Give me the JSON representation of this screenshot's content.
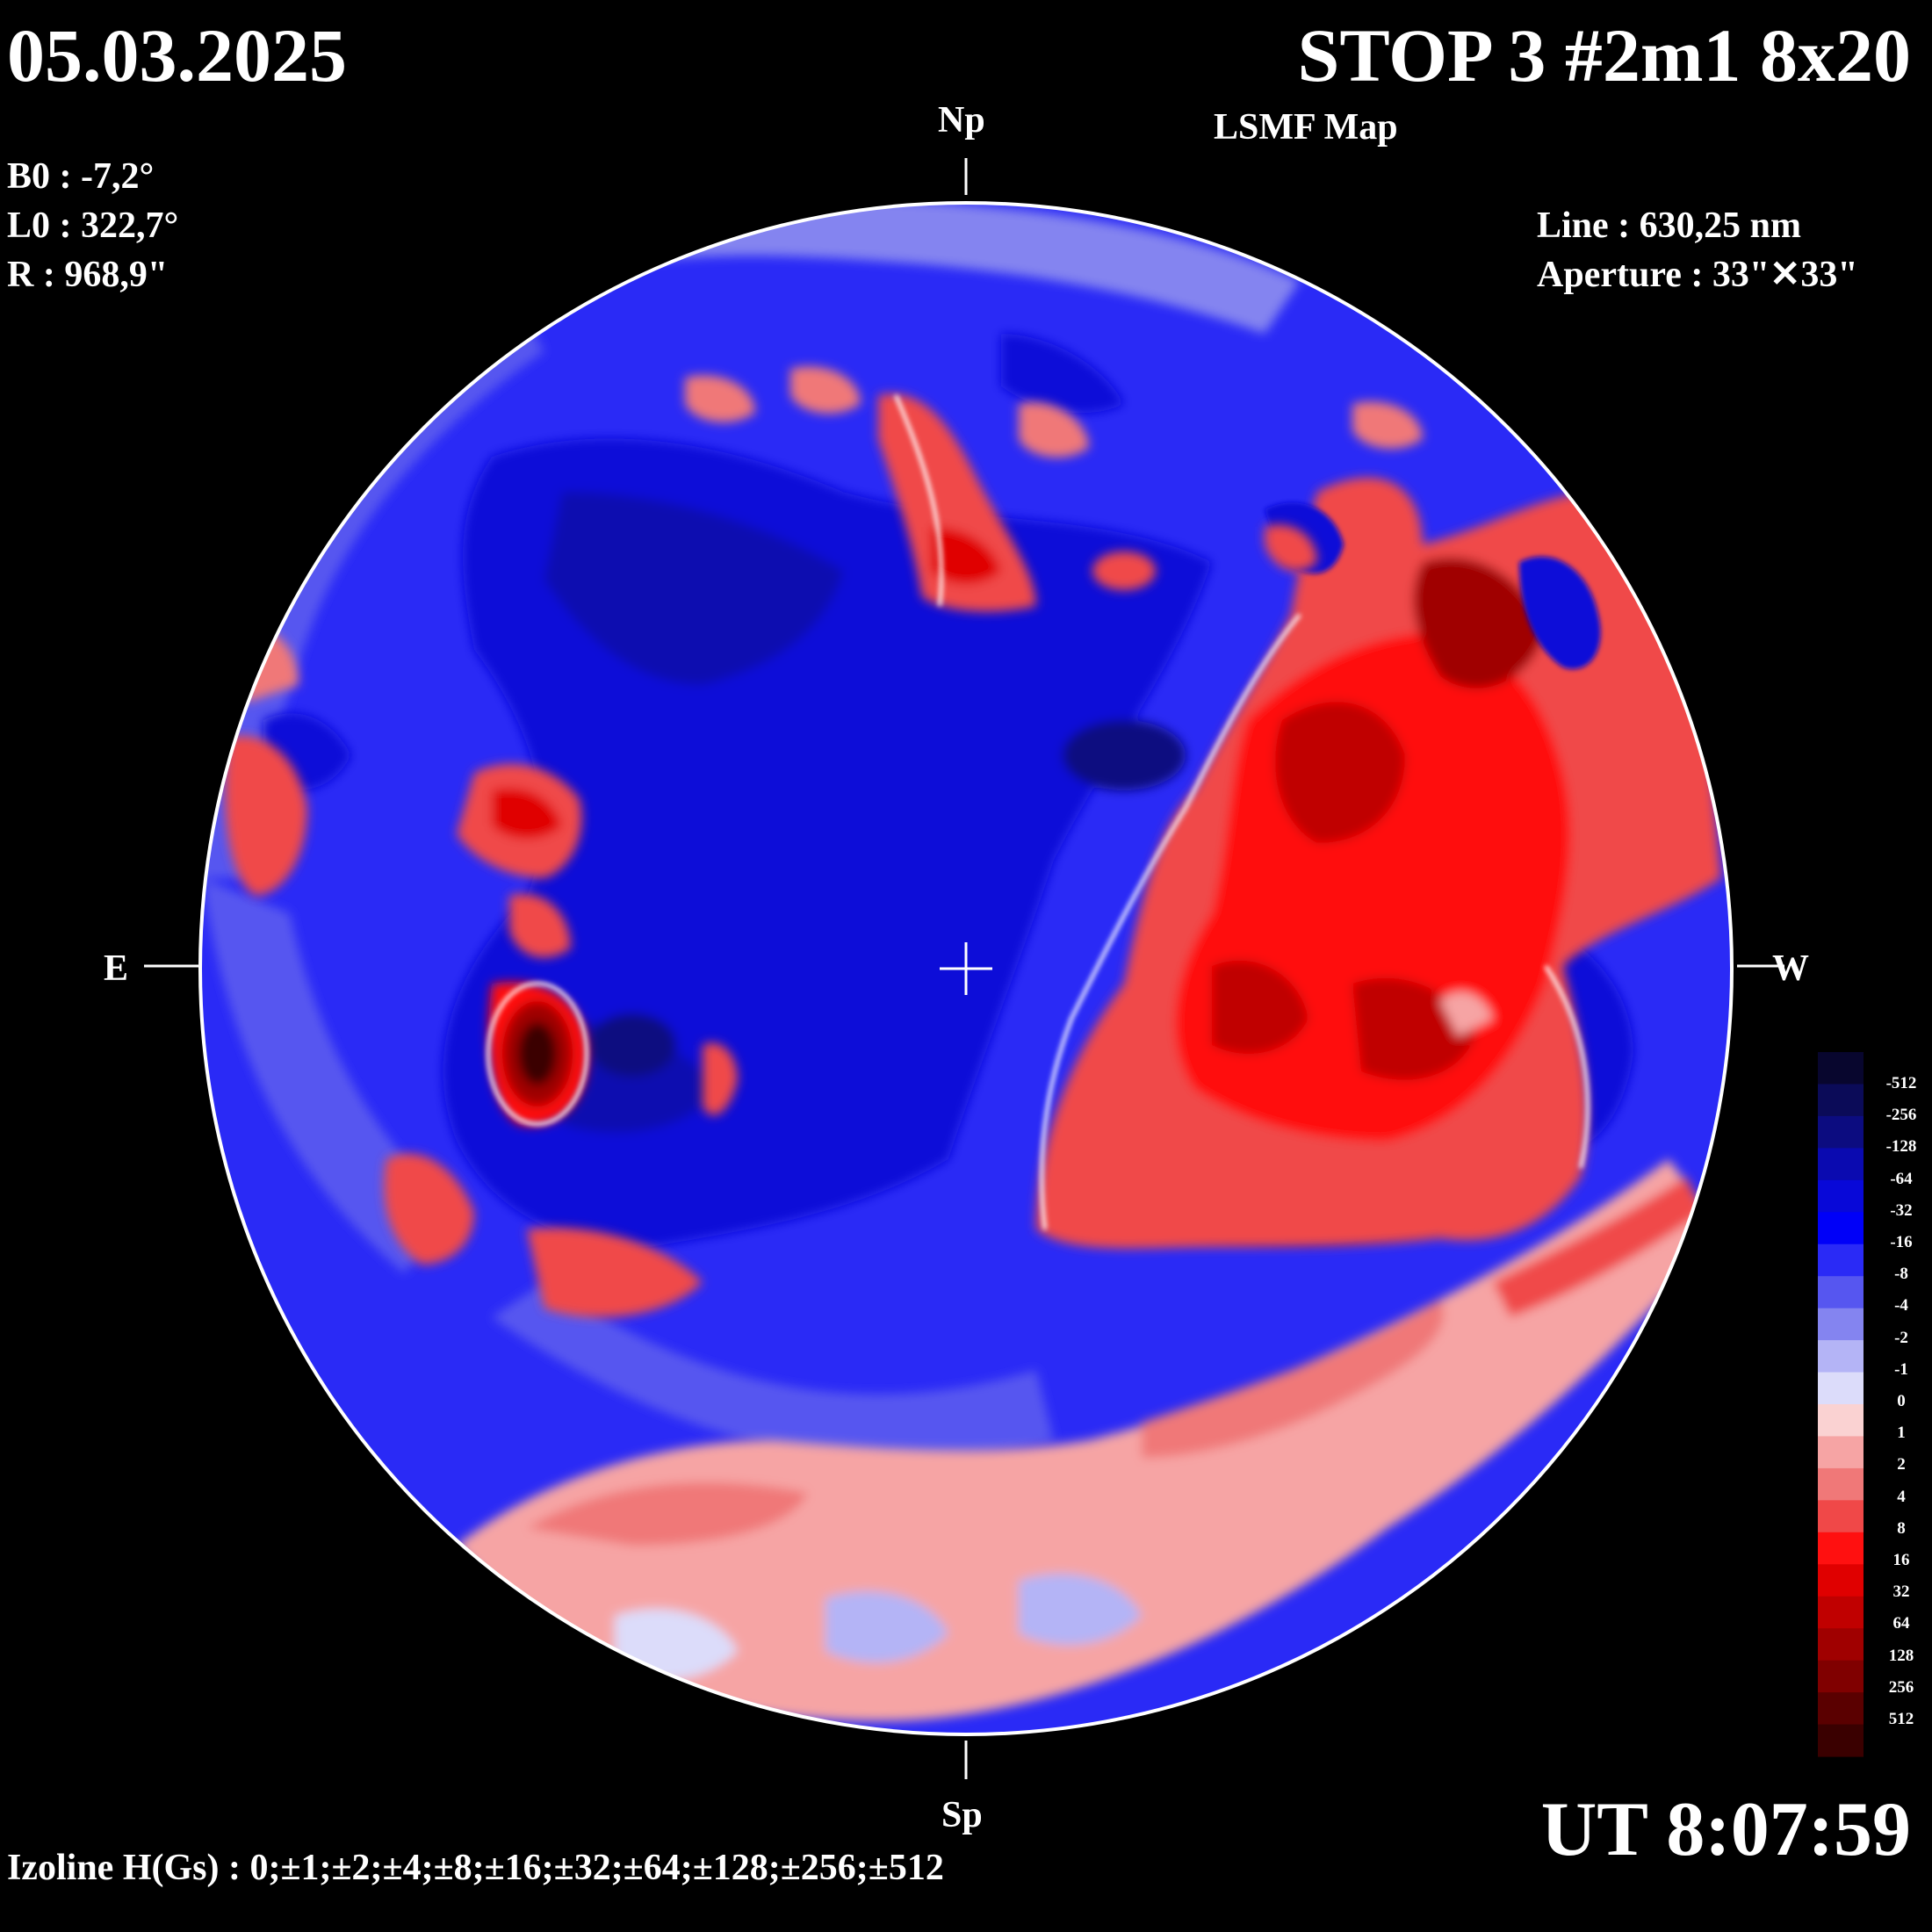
{
  "header": {
    "date": "05.03.2025",
    "title": "STOP 3 #2m1 8x20",
    "subtitle": "LSMF  Map"
  },
  "params": {
    "b0": "B0 : -7,2°",
    "l0": "L0 : 322,7°",
    "r": "R  : 968,9\""
  },
  "instrument": {
    "line": "Line :  630,25 nm",
    "aperture": "Aperture : 33\"✕33\""
  },
  "time": "UT 8:07:59",
  "izoline": "Izoline H(Gs) : 0;±1;±2;±4;±8;±16;±32;±64;±128;±256;±512",
  "directions": {
    "north": "Np",
    "south": "Sp",
    "east": "E",
    "west": "W"
  },
  "colorbar": {
    "labels": [
      "-512",
      "-256",
      "-128",
      "-64",
      "-32",
      "-16",
      "-8",
      "-4",
      "-2",
      "-1",
      "0",
      "1",
      "2",
      "4",
      "8",
      "16",
      "32",
      "64",
      "128",
      "256",
      "512"
    ],
    "colors": [
      "#08062e",
      "#0b0b58",
      "#0c0c80",
      "#0a0ab0",
      "#0808d8",
      "#0000f8",
      "#2a2af6",
      "#5656f0",
      "#8484f0",
      "#b4b4f6",
      "#dcdcfa",
      "#fad2d2",
      "#f6a4a4",
      "#f07878",
      "#f04848",
      "#ff1010",
      "#e00000",
      "#c00000",
      "#a00000",
      "#800000",
      "#5a0000",
      "#3a0000"
    ]
  }
}
